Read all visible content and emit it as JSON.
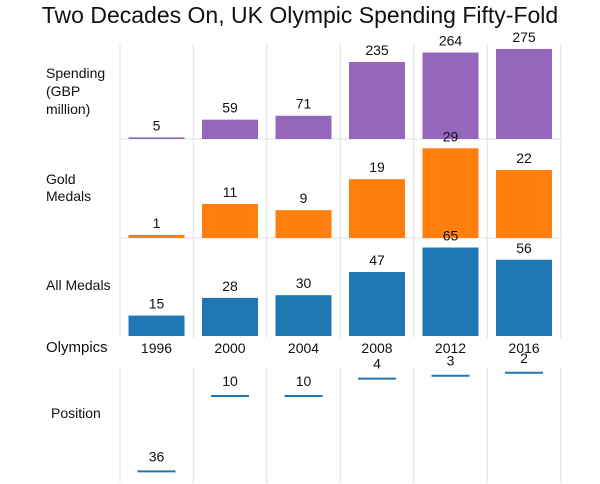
{
  "title": "Two Decades On, UK Olympic Spending Fifty-Fold",
  "chart_data": {
    "type": "bar",
    "title": "Two Decades On, UK Olympic Spending Fifty-Fold",
    "xlabel": "Olympics",
    "categories": [
      "1996",
      "2000",
      "2004",
      "2008",
      "2012",
      "2016"
    ],
    "panels": [
      {
        "label": [
          "Spending",
          "(GBP",
          "million)"
        ],
        "type": "bar",
        "color": "#9467bd",
        "ylim": [
          0,
          290
        ],
        "values": [
          5,
          59,
          71,
          235,
          264,
          275
        ]
      },
      {
        "label": [
          "Gold",
          "Medals"
        ],
        "type": "bar",
        "color": "#ff7f0e",
        "ylim": [
          0,
          32
        ],
        "values": [
          1,
          11,
          9,
          19,
          29,
          22
        ]
      },
      {
        "label": [
          "All Medals"
        ],
        "type": "bar",
        "color": "#1f77b4",
        "ylim": [
          0,
          72
        ],
        "values": [
          15,
          28,
          30,
          47,
          65,
          56
        ]
      },
      {
        "label": [
          "Position"
        ],
        "type": "line-marker",
        "color": "#1f77b4",
        "ylim": [
          40,
          0
        ],
        "values": [
          36,
          10,
          10,
          4,
          3,
          2
        ]
      }
    ]
  }
}
